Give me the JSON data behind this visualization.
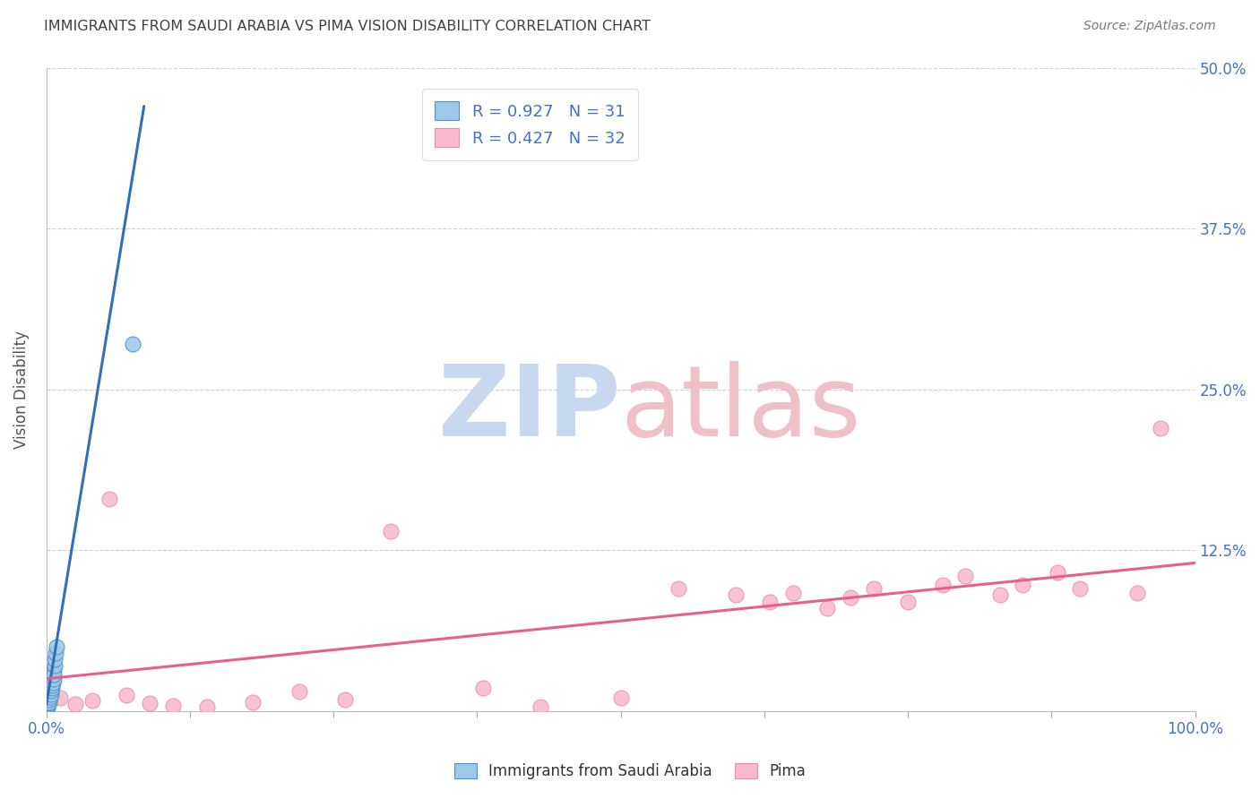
{
  "title": "IMMIGRANTS FROM SAUDI ARABIA VS PIMA VISION DISABILITY CORRELATION CHART",
  "source": "Source: ZipAtlas.com",
  "ylabel": "Vision Disability",
  "r_blue": 0.927,
  "n_blue": 31,
  "r_pink": 0.427,
  "n_pink": 32,
  "blue_color": "#9ec8e8",
  "pink_color": "#f9b8cc",
  "blue_line_color": "#3070b8",
  "pink_line_color": "#e8608a",
  "background_color": "#ffffff",
  "grid_color": "#cccccc",
  "axis_label_color": "#4472c4",
  "title_color": "#404040",
  "watermark_color_zip": "#c8d8ee",
  "watermark_color_atlas": "#f0c0c8",
  "xlim": [
    0.0,
    100.0
  ],
  "ylim": [
    0.0,
    50.0
  ],
  "xticks": [
    0.0,
    12.5,
    25.0,
    37.5,
    50.0,
    62.5,
    75.0,
    87.5,
    100.0
  ],
  "yticks": [
    0.0,
    12.5,
    25.0,
    37.5,
    50.0
  ],
  "blue_scatter_x": [
    0.05,
    0.08,
    0.1,
    0.12,
    0.15,
    0.18,
    0.2,
    0.22,
    0.25,
    0.28,
    0.3,
    0.32,
    0.35,
    0.38,
    0.4,
    0.42,
    0.45,
    0.48,
    0.5,
    0.52,
    0.55,
    0.58,
    0.6,
    0.62,
    0.65,
    0.68,
    0.7,
    0.75,
    0.8,
    0.85,
    7.5
  ],
  "blue_scatter_y": [
    0.2,
    0.3,
    0.5,
    0.4,
    0.8,
    0.6,
    1.0,
    0.7,
    1.2,
    0.9,
    1.5,
    1.1,
    1.8,
    1.3,
    2.0,
    1.6,
    2.2,
    1.8,
    2.5,
    2.0,
    2.8,
    2.2,
    3.0,
    2.5,
    3.2,
    2.8,
    3.5,
    4.0,
    4.5,
    5.0,
    28.5
  ],
  "pink_scatter_x": [
    0.3,
    1.2,
    2.5,
    4.0,
    5.5,
    7.0,
    9.0,
    11.0,
    14.0,
    18.0,
    22.0,
    26.0,
    30.0,
    38.0,
    43.0,
    50.0,
    55.0,
    60.0,
    63.0,
    65.0,
    68.0,
    70.0,
    72.0,
    75.0,
    78.0,
    80.0,
    83.0,
    85.0,
    88.0,
    90.0,
    95.0,
    97.0
  ],
  "pink_scatter_y": [
    3.5,
    1.0,
    0.5,
    0.8,
    16.5,
    1.2,
    0.6,
    0.4,
    0.3,
    0.7,
    1.5,
    0.9,
    14.0,
    1.8,
    0.3,
    1.0,
    9.5,
    9.0,
    8.5,
    9.2,
    8.0,
    8.8,
    9.5,
    8.5,
    9.8,
    10.5,
    9.0,
    9.8,
    10.8,
    9.5,
    9.2,
    22.0
  ],
  "blue_trendline_x": [
    0.0,
    8.5
  ],
  "blue_trendline_y": [
    0.5,
    47.0
  ],
  "pink_trendline_x": [
    0.0,
    100.0
  ],
  "pink_trendline_y": [
    2.5,
    11.5
  ]
}
